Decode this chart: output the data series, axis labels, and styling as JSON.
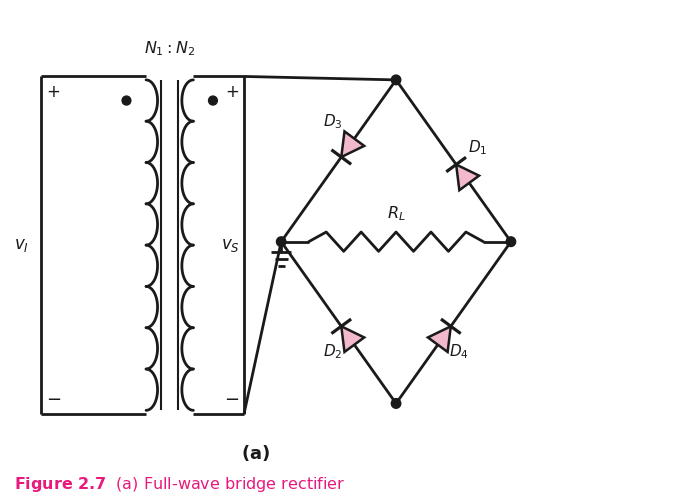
{
  "background_color": "#ffffff",
  "line_color": "#1a1a1a",
  "line_width": 2.0,
  "diode_fill_color": "#f2b8cc",
  "diode_edge_color": "#1a1a1a",
  "figure_label_color": "#e8197d",
  "n_coil_loops": 8
}
